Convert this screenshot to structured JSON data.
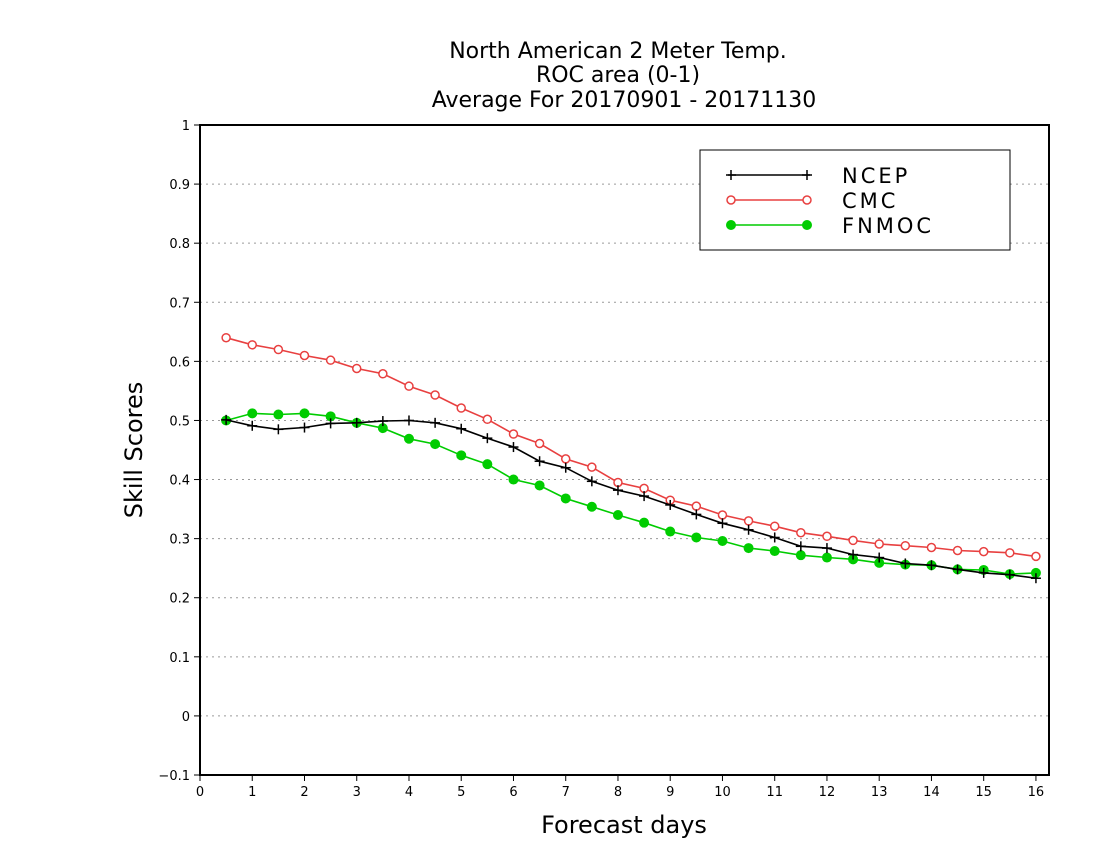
{
  "chart_data": {
    "type": "line",
    "title": [
      "North American 2 Meter Temp.",
      "ROC area (0-1)",
      "Average For 20170901 - 20171130"
    ],
    "xlabel": "Forecast days",
    "ylabel": "Skill Scores",
    "xlim": [
      0,
      16.25
    ],
    "ylim": [
      -0.1,
      1
    ],
    "xticks": [
      0,
      1,
      2,
      3,
      4,
      5,
      6,
      7,
      8,
      9,
      10,
      11,
      12,
      13,
      14,
      15,
      16
    ],
    "yticks": [
      -0.1,
      0,
      0.1,
      0.2,
      0.3,
      0.4,
      0.5,
      0.6,
      0.7,
      0.8,
      0.9,
      1
    ],
    "ytick_labels": [
      "−0.1",
      "0",
      "0.1",
      "0.2",
      "0.3",
      "0.4",
      "0.5",
      "0.6",
      "0.7",
      "0.8",
      "0.9",
      "1"
    ],
    "grid": "horizontal dotted",
    "legend_position": "top-right",
    "x": [
      0.5,
      1,
      1.5,
      2,
      2.5,
      3,
      3.5,
      4,
      4.5,
      5,
      5.5,
      6,
      6.5,
      7,
      7.5,
      8,
      8.5,
      9,
      9.5,
      10,
      10.5,
      11,
      11.5,
      12,
      12.5,
      13,
      13.5,
      14,
      14.5,
      15,
      15.5,
      16
    ],
    "series": [
      {
        "name": "NCEP",
        "color": "#000000",
        "marker": "plus",
        "values": [
          0.501,
          0.491,
          0.485,
          0.488,
          0.495,
          0.496,
          0.499,
          0.5,
          0.496,
          0.486,
          0.47,
          0.455,
          0.431,
          0.42,
          0.397,
          0.382,
          0.372,
          0.357,
          0.341,
          0.326,
          0.315,
          0.302,
          0.287,
          0.284,
          0.273,
          0.268,
          0.258,
          0.255,
          0.248,
          0.242,
          0.239,
          0.233
        ]
      },
      {
        "name": "CMC",
        "color": "#e84040",
        "marker": "open-circle",
        "values": [
          0.64,
          0.628,
          0.62,
          0.61,
          0.602,
          0.588,
          0.579,
          0.558,
          0.543,
          0.521,
          0.502,
          0.477,
          0.461,
          0.435,
          0.421,
          0.395,
          0.385,
          0.365,
          0.355,
          0.34,
          0.33,
          0.321,
          0.31,
          0.304,
          0.297,
          0.291,
          0.288,
          0.285,
          0.28,
          0.278,
          0.276,
          0.27
        ]
      },
      {
        "name": "FNMOC",
        "color": "#00cc00",
        "marker": "filled-circle",
        "values": [
          0.5,
          0.512,
          0.51,
          0.512,
          0.507,
          0.496,
          0.487,
          0.469,
          0.46,
          0.441,
          0.426,
          0.4,
          0.39,
          0.368,
          0.354,
          0.34,
          0.327,
          0.312,
          0.302,
          0.296,
          0.284,
          0.279,
          0.272,
          0.268,
          0.265,
          0.259,
          0.256,
          0.255,
          0.248,
          0.247,
          0.24,
          0.242
        ]
      }
    ]
  }
}
